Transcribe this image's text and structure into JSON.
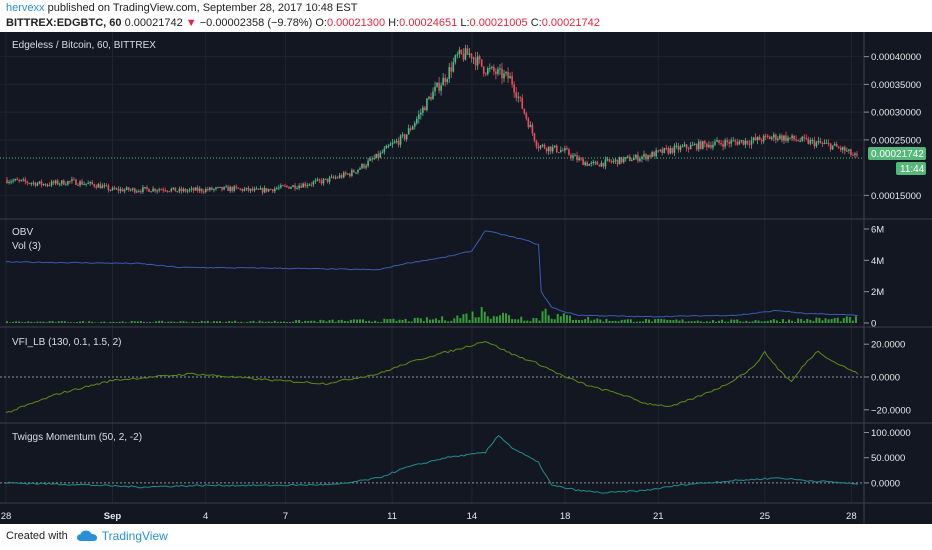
{
  "header": {
    "author": "hervexx",
    "published": "published on TradingView.com, September 28, 2017 10:48 EST",
    "symbol": "BITTREX:EDGBTC, 60",
    "last": "0.00021742",
    "change_arrow": "▼",
    "change": "−0.00002358 (−9.78%)",
    "o_label": "O:",
    "o": "0.00021300",
    "h_label": "H:",
    "h": "0.00024651",
    "l_label": "L:",
    "l": "0.00021005",
    "c_label": "C:",
    "c": "0.00021742"
  },
  "colors": {
    "background": "#131722",
    "up_candle": "#53b987",
    "down_candle": "#eb4d5c",
    "obv_line": "#3a5bb0",
    "volume": "#3db53d",
    "vfi_line": "#5f8a17",
    "momentum_line": "#1f8f8a",
    "price_badge": "#55b77a"
  },
  "footer": {
    "created_with": "Created with",
    "brand": "TradingView"
  },
  "chart_data": [
    {
      "type": "candlestick",
      "title": "Edgeless / Bitcoin, 60, BITTREX",
      "x_ticks": [
        "28",
        "Sep",
        "4",
        "7",
        "11",
        "14",
        "18",
        "21",
        "25",
        "28"
      ],
      "y_ticks": [
        "0.00040000",
        "0.00035000",
        "0.00030000",
        "0.00025000",
        "0.00015000"
      ],
      "ylim": [
        0.00012,
        0.00043
      ],
      "price_label": "0.00021742",
      "countdown_label": "11:44",
      "close_path": [
        [
          0,
          0.000178
        ],
        [
          3,
          0.00017
        ],
        [
          5,
          0.000175
        ],
        [
          7,
          0.000168
        ],
        [
          8,
          0.00016
        ],
        [
          10,
          0.00016
        ],
        [
          12,
          0.000162
        ],
        [
          13,
          0.000158
        ],
        [
          15,
          0.00016
        ],
        [
          17,
          0.000162
        ],
        [
          19,
          0.000158
        ],
        [
          22,
          0.000168
        ],
        [
          24,
          0.000176
        ],
        [
          26,
          0.00019
        ],
        [
          27,
          0.000205
        ],
        [
          28,
          0.00022
        ],
        [
          29,
          0.00024
        ],
        [
          30,
          0.000255
        ],
        [
          31,
          0.00029
        ],
        [
          32,
          0.00033
        ],
        [
          33,
          0.00036
        ],
        [
          34,
          0.0004
        ],
        [
          35,
          0.000405
        ],
        [
          36,
          0.000378
        ],
        [
          37,
          0.00037
        ],
        [
          38,
          0.00036
        ],
        [
          39,
          0.0003
        ],
        [
          40,
          0.00024
        ],
        [
          42,
          0.00023
        ],
        [
          43,
          0.000215
        ],
        [
          44,
          0.000205
        ],
        [
          46,
          0.000212
        ],
        [
          48,
          0.00022
        ],
        [
          50,
          0.000232
        ],
        [
          52,
          0.00024
        ],
        [
          54,
          0.000245
        ],
        [
          56,
          0.000248
        ],
        [
          58,
          0.000256
        ],
        [
          60,
          0.000248
        ],
        [
          62,
          0.00024
        ],
        [
          63,
          0.000232
        ],
        [
          64,
          0.000218
        ]
      ]
    },
    {
      "type": "line",
      "title": "OBV",
      "subtitle": "Vol (3)",
      "y_ticks": [
        "6M",
        "4M",
        "2M",
        "0"
      ],
      "ylim": [
        0,
        6000000
      ],
      "series": [
        {
          "name": "OBV",
          "points": [
            [
              0,
              3900000
            ],
            [
              10,
              3800000
            ],
            [
              13,
              3550000
            ],
            [
              20,
              3500000
            ],
            [
              28,
              3400000
            ],
            [
              30,
              3800000
            ],
            [
              33,
              4200000
            ],
            [
              35,
              4600000
            ],
            [
              36,
              5900000
            ],
            [
              39,
              5300000
            ],
            [
              40,
              5000000
            ],
            [
              40.2,
              2000000
            ],
            [
              41,
              1000000
            ],
            [
              42,
              700000
            ],
            [
              43,
              500000
            ],
            [
              48,
              400000
            ],
            [
              55,
              500000
            ],
            [
              58,
              800000
            ],
            [
              60,
              600000
            ],
            [
              64,
              500000
            ]
          ]
        },
        {
          "name": "Vol",
          "points": [
            [
              0,
              80000
            ],
            [
              10,
              90000
            ],
            [
              20,
              110000
            ],
            [
              30,
              200000
            ],
            [
              33,
              300000
            ],
            [
              35,
              600000
            ],
            [
              36,
              900000
            ],
            [
              38,
              400000
            ],
            [
              40,
              300000
            ],
            [
              40.5,
              1200000
            ],
            [
              41,
              500000
            ],
            [
              45,
              200000
            ],
            [
              55,
              150000
            ],
            [
              64,
              300000
            ]
          ]
        }
      ]
    },
    {
      "type": "line",
      "title": "VFI_LB (130, 0.1, 1.5, 2)",
      "y_ticks": [
        "20.0000",
        "0.0000",
        "−20.0000"
      ],
      "ylim": [
        -25,
        25
      ],
      "series": [
        {
          "name": "VFI",
          "points": [
            [
              0,
              -22
            ],
            [
              4,
              -10
            ],
            [
              8,
              -2
            ],
            [
              14,
              2
            ],
            [
              20,
              -2
            ],
            [
              24,
              -4
            ],
            [
              28,
              2
            ],
            [
              30,
              8
            ],
            [
              32,
              13
            ],
            [
              34,
              17
            ],
            [
              36,
              22
            ],
            [
              38,
              14
            ],
            [
              40,
              8
            ],
            [
              42,
              0
            ],
            [
              44,
              -6
            ],
            [
              46,
              -10
            ],
            [
              48,
              -16
            ],
            [
              50,
              -18
            ],
            [
              52,
              -12
            ],
            [
              54,
              -5
            ],
            [
              56,
              5
            ],
            [
              57,
              15
            ],
            [
              58,
              5
            ],
            [
              59,
              -3
            ],
            [
              60,
              8
            ],
            [
              61,
              16
            ],
            [
              62,
              10
            ],
            [
              64,
              2
            ]
          ]
        }
      ]
    },
    {
      "type": "line",
      "title": "Twiggs Momentum (50, 2, -2)",
      "y_ticks": [
        "100.0000",
        "50.0000",
        "0.0000"
      ],
      "ylim": [
        -30,
        105
      ],
      "series": [
        {
          "name": "Momentum",
          "points": [
            [
              0,
              0
            ],
            [
              5,
              -3
            ],
            [
              10,
              -8
            ],
            [
              15,
              -5
            ],
            [
              20,
              -5
            ],
            [
              25,
              -3
            ],
            [
              28,
              10
            ],
            [
              30,
              30
            ],
            [
              33,
              50
            ],
            [
              36,
              60
            ],
            [
              37,
              95
            ],
            [
              38,
              70
            ],
            [
              40,
              40
            ],
            [
              41,
              -5
            ],
            [
              43,
              -15
            ],
            [
              45,
              -20
            ],
            [
              48,
              -15
            ],
            [
              51,
              -3
            ],
            [
              55,
              5
            ],
            [
              58,
              10
            ],
            [
              60,
              5
            ],
            [
              63,
              0
            ],
            [
              64,
              -3
            ]
          ]
        }
      ]
    }
  ]
}
